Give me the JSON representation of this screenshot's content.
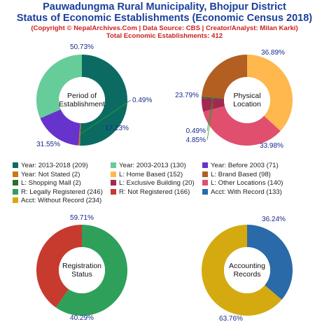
{
  "header": {
    "title_line1": "Pauwadungma Rural Municipality, Bhojpur District",
    "title_line2": "Status of Economic Establishments (Economic Census 2018)",
    "copyright": "(Copyright © NepalArchives.Com | Data Source: CBS | Creator/Analyst: Milan Karki)",
    "total": "Total Economic Establishments: 412"
  },
  "legend": [
    {
      "label": "Year: 2013-2018 (209)",
      "color": "#0b6b63"
    },
    {
      "label": "Year: 2003-2013 (130)",
      "color": "#66cc99"
    },
    {
      "label": "Year: Before 2003 (71)",
      "color": "#6633cc"
    },
    {
      "label": "Year: Not Stated (2)",
      "color": "#c77a1a"
    },
    {
      "label": "L: Home Based (152)",
      "color": "#ffb84d"
    },
    {
      "label": "L: Brand Based (98)",
      "color": "#b35f22"
    },
    {
      "label": "L: Shopping Mall (2)",
      "color": "#2d6e2d"
    },
    {
      "label": "L: Exclusive Building (20)",
      "color": "#a3284f"
    },
    {
      "label": "L: Other Locations (140)",
      "color": "#e0506e"
    },
    {
      "label": "R: Legally Registered (246)",
      "color": "#2ea05a"
    },
    {
      "label": "R: Not Registered (166)",
      "color": "#c63b2e"
    },
    {
      "label": "Acct: With Record (133)",
      "color": "#2a6aa8"
    },
    {
      "label": "Acct: Without Record (234)",
      "color": "#d4aa10"
    }
  ],
  "chart_data": [
    {
      "type": "pie",
      "center_label": [
        "Period of",
        "Establishment"
      ],
      "slices": [
        {
          "label": "Year: 2013-2018",
          "value": 209,
          "pct": "50.73%",
          "color": "#0b6b63"
        },
        {
          "label": "Year: Not Stated",
          "value": 2,
          "pct": "0.49%",
          "color": "#c77a1a"
        },
        {
          "label": "Year: Before 2003",
          "value": 71,
          "pct": "17.23%",
          "color": "#6633cc"
        },
        {
          "label": "Year: 2003-2013",
          "value": 130,
          "pct": "31.55%",
          "color": "#66cc99"
        }
      ]
    },
    {
      "type": "pie",
      "center_label": [
        "Physical",
        "Location"
      ],
      "slices": [
        {
          "label": "L: Home Based",
          "value": 152,
          "pct": "36.89%",
          "color": "#ffb84d"
        },
        {
          "label": "L: Other Locations",
          "value": 140,
          "pct": "33.98%",
          "color": "#e0506e"
        },
        {
          "label": "L: Exclusive Building",
          "value": 20,
          "pct": "4.85%",
          "color": "#a3284f"
        },
        {
          "label": "L: Shopping Mall",
          "value": 2,
          "pct": "0.49%",
          "color": "#2d6e2d"
        },
        {
          "label": "L: Brand Based",
          "value": 98,
          "pct": "23.79%",
          "color": "#b35f22"
        }
      ]
    },
    {
      "type": "pie",
      "center_label": [
        "Registration",
        "Status"
      ],
      "slices": [
        {
          "label": "R: Legally Registered",
          "value": 246,
          "pct": "59.71%",
          "color": "#2ea05a"
        },
        {
          "label": "R: Not Registered",
          "value": 166,
          "pct": "40.29%",
          "color": "#c63b2e"
        }
      ]
    },
    {
      "type": "pie",
      "center_label": [
        "Accounting",
        "Records"
      ],
      "slices": [
        {
          "label": "Acct: With Record",
          "value": 133,
          "pct": "36.24%",
          "color": "#2a6aa8"
        },
        {
          "label": "Acct: Without Record",
          "value": 234,
          "pct": "63.76%",
          "color": "#d4aa10"
        }
      ]
    }
  ]
}
